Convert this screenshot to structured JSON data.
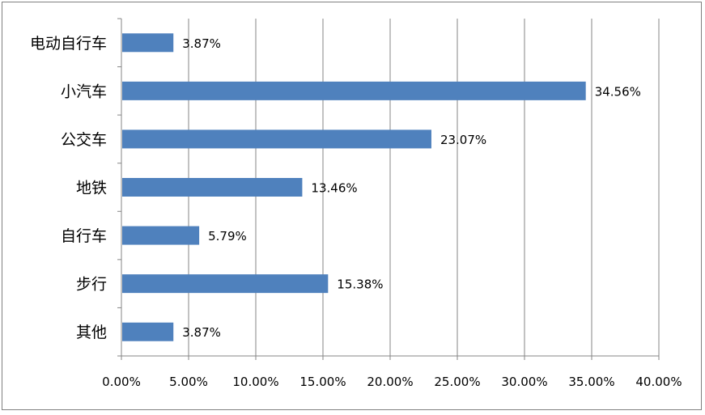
{
  "chart_data": {
    "type": "bar",
    "orientation": "horizontal",
    "categories": [
      "电动自行车",
      "小汽车",
      "公交车",
      "地铁",
      "自行车",
      "步行",
      "其他"
    ],
    "values": [
      3.87,
      34.56,
      23.07,
      13.46,
      5.79,
      15.38,
      3.87
    ],
    "value_labels": [
      "3.87%",
      "34.56%",
      "23.07%",
      "13.46%",
      "5.79%",
      "15.38%",
      "3.87%"
    ],
    "xticks": [
      "0.00%",
      "5.00%",
      "10.00%",
      "15.00%",
      "20.00%",
      "25.00%",
      "30.00%",
      "35.00%",
      "40.00%"
    ],
    "xlim": [
      0,
      40
    ],
    "grid": "vertical",
    "legend": "none",
    "bar_color": "#4f81bd",
    "grid_color": "#868686",
    "title": "",
    "xlabel": "",
    "ylabel": ""
  }
}
